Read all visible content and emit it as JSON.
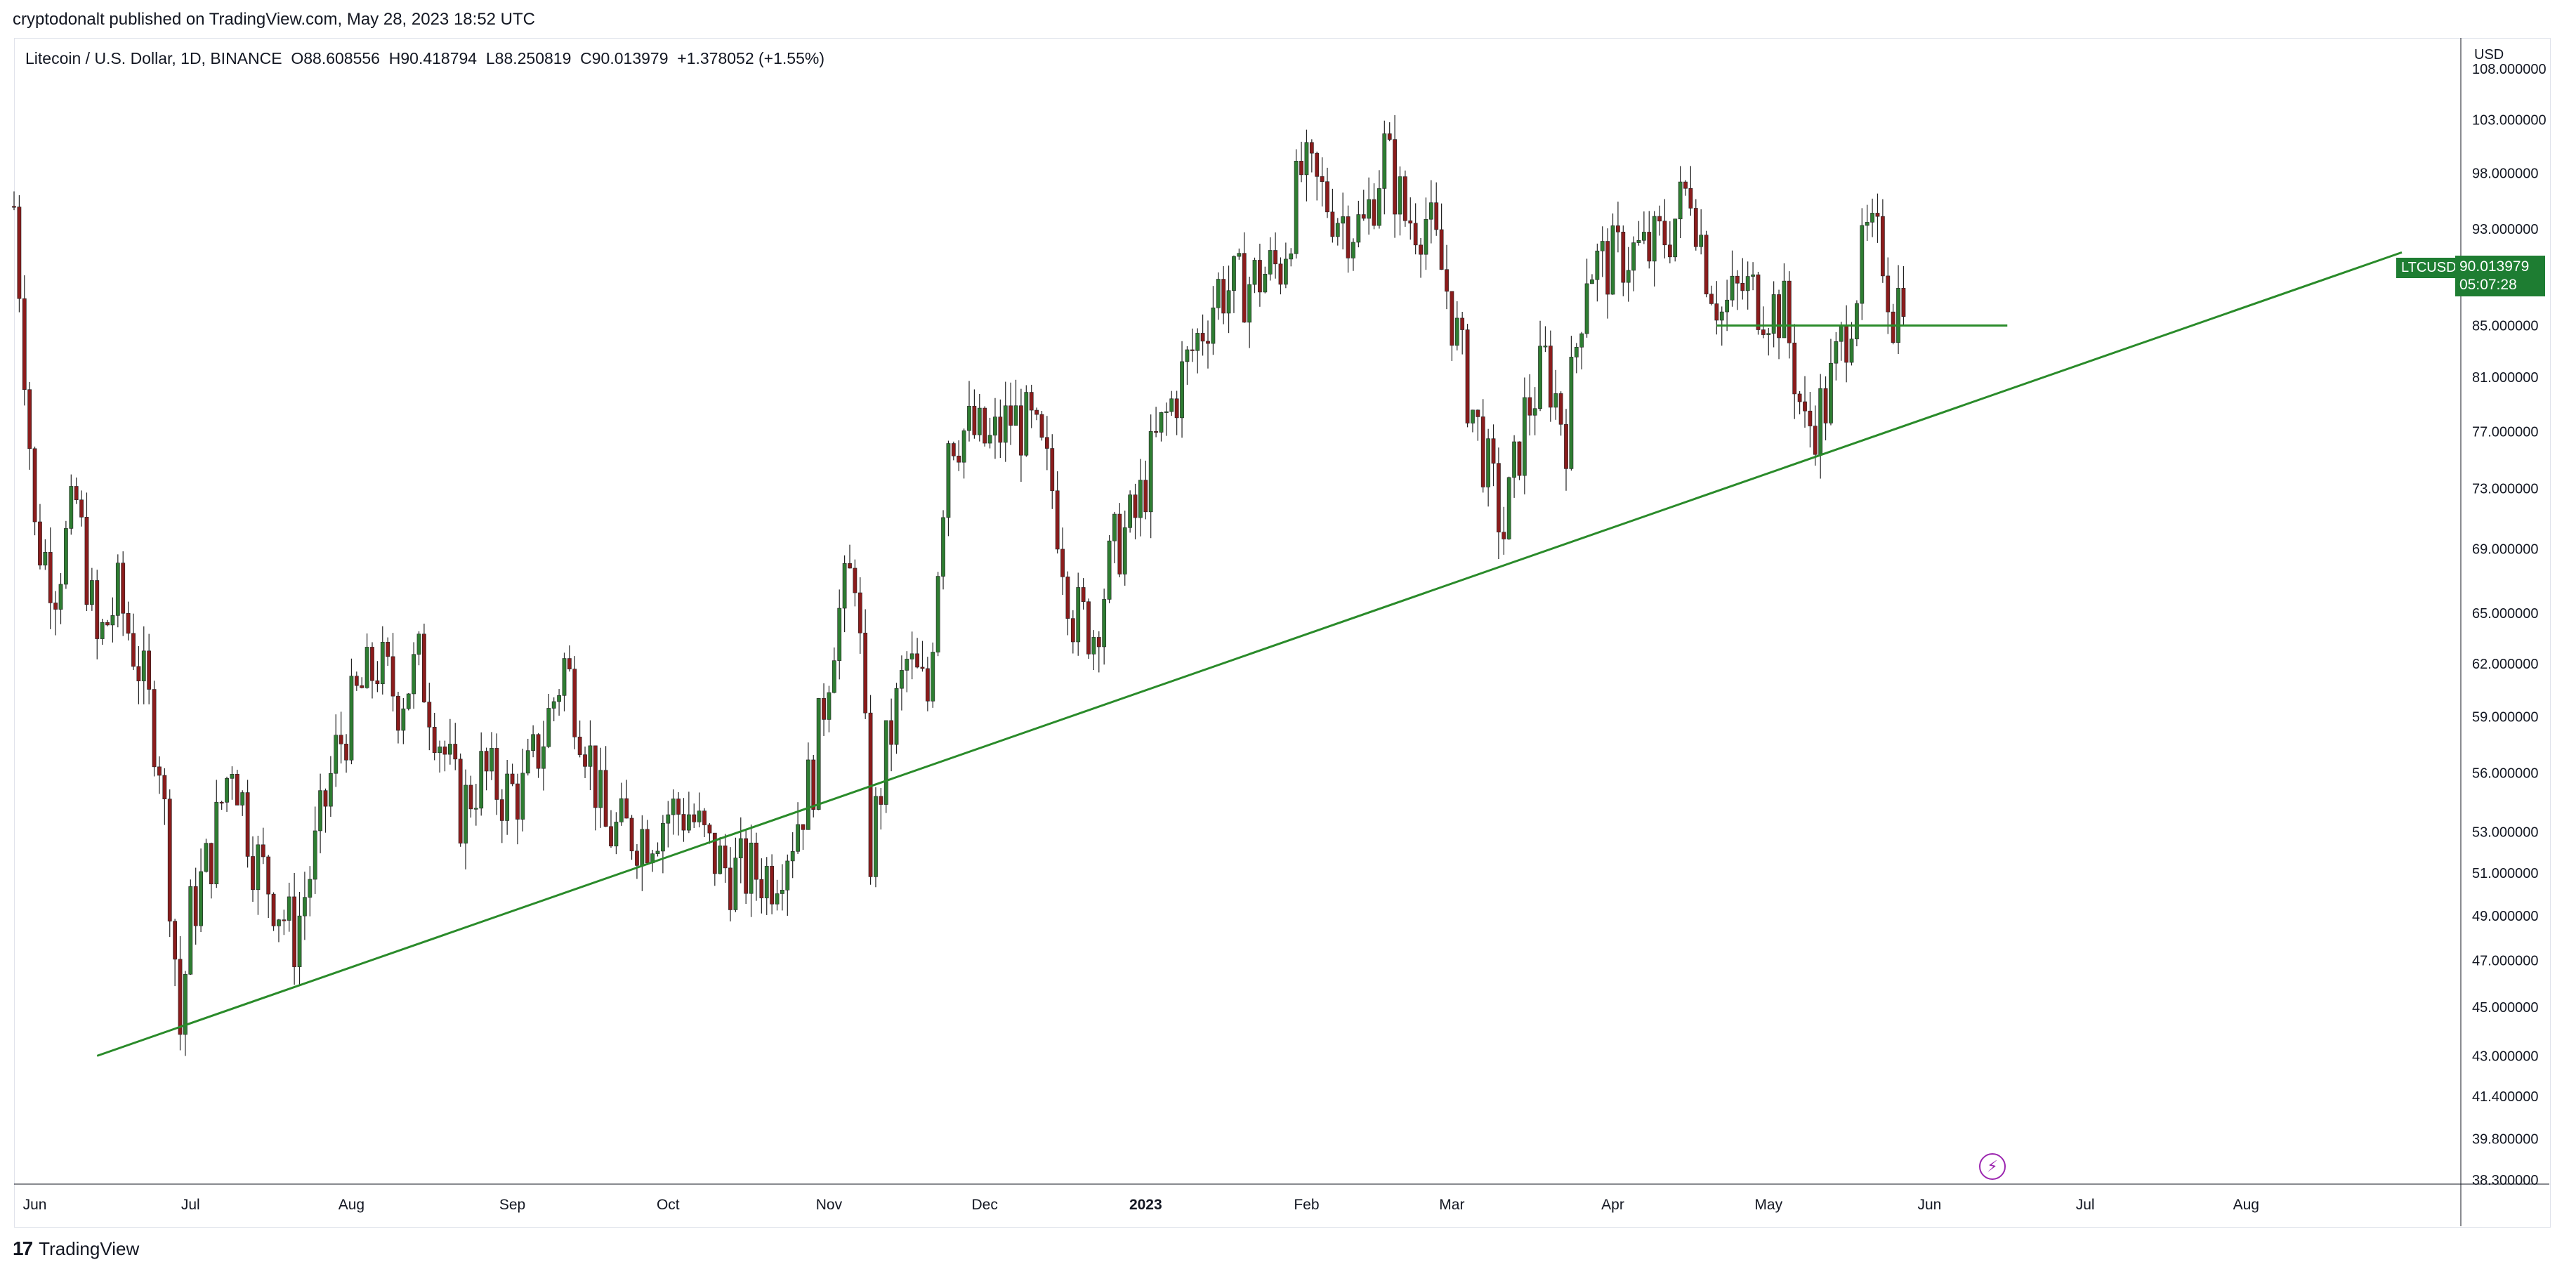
{
  "header": {
    "published_by": "cryptodonalt published on TradingView.com, May 28, 2023 18:52 UTC"
  },
  "legend": {
    "text": "Litecoin / U.S. Dollar, 1D, BINANCE  O88.608556  H90.418794  L88.250819  C90.013979  +1.378052 (+1.55%)"
  },
  "footer": {
    "brand": "TradingView",
    "logo_glyph": "17"
  },
  "price_axis": {
    "currency": "USD",
    "ticks": [
      "108.000000",
      "103.000000",
      "98.000000",
      "93.000000",
      "85.000000",
      "81.000000",
      "77.000000",
      "73.000000",
      "69.000000",
      "65.000000",
      "62.000000",
      "59.000000",
      "56.000000",
      "53.000000",
      "51.000000",
      "49.000000",
      "47.000000",
      "45.000000",
      "43.000000",
      "41.400000",
      "39.800000",
      "38.300000"
    ]
  },
  "current_price": {
    "symbol": "LTCUSD",
    "price": "90.013979",
    "countdown": "05:07:28",
    "color": "#1e7d32"
  },
  "time_axis": {
    "labels": [
      "Jun",
      "Jul",
      "Aug",
      "Sep",
      "Oct",
      "Nov",
      "Dec",
      "2023",
      "Feb",
      "Mar",
      "Apr",
      "May",
      "Jun",
      "Jul",
      "Aug"
    ]
  },
  "colors": {
    "up": "#2e7d32",
    "down": "#8b1c1c",
    "trendline": "#2a8b2a",
    "bolt": "#9c27b0"
  },
  "chart_data": {
    "type": "candlestick",
    "scale": "log",
    "ylim": [
      38.3,
      108
    ],
    "x_start": "2022-05-28",
    "x_end": "2023-08-31",
    "series": [
      {
        "x": "2022-05-28",
        "close": 95
      },
      {
        "x": "2022-06-01",
        "close": 70
      },
      {
        "x": "2022-06-05",
        "close": 67
      },
      {
        "x": "2022-06-09",
        "close": 72
      },
      {
        "x": "2022-06-13",
        "close": 63
      },
      {
        "x": "2022-06-17",
        "close": 66
      },
      {
        "x": "2022-06-21",
        "close": 62
      },
      {
        "x": "2022-06-25",
        "close": 57
      },
      {
        "x": "2022-06-29",
        "close": 44
      },
      {
        "x": "2022-07-01",
        "close": 49
      },
      {
        "x": "2022-07-05",
        "close": 52
      },
      {
        "x": "2022-07-09",
        "close": 57
      },
      {
        "x": "2022-07-13",
        "close": 52
      },
      {
        "x": "2022-07-17",
        "close": 50
      },
      {
        "x": "2022-07-21",
        "close": 48
      },
      {
        "x": "2022-07-25",
        "close": 52
      },
      {
        "x": "2022-07-29",
        "close": 57
      },
      {
        "x": "2022-08-02",
        "close": 60
      },
      {
        "x": "2022-08-06",
        "close": 62
      },
      {
        "x": "2022-08-10",
        "close": 60
      },
      {
        "x": "2022-08-14",
        "close": 62
      },
      {
        "x": "2022-08-18",
        "close": 58
      },
      {
        "x": "2022-08-22",
        "close": 54
      },
      {
        "x": "2022-08-26",
        "close": 56
      },
      {
        "x": "2022-08-30",
        "close": 55
      },
      {
        "x": "2022-09-03",
        "close": 55
      },
      {
        "x": "2022-09-07",
        "close": 58
      },
      {
        "x": "2022-09-11",
        "close": 62
      },
      {
        "x": "2022-09-15",
        "close": 58
      },
      {
        "x": "2022-09-19",
        "close": 53
      },
      {
        "x": "2022-09-23",
        "close": 53
      },
      {
        "x": "2022-09-27",
        "close": 53
      },
      {
        "x": "2022-10-01",
        "close": 54
      },
      {
        "x": "2022-10-05",
        "close": 54
      },
      {
        "x": "2022-10-09",
        "close": 52
      },
      {
        "x": "2022-10-13",
        "close": 51
      },
      {
        "x": "2022-10-17",
        "close": 51
      },
      {
        "x": "2022-10-21",
        "close": 51
      },
      {
        "x": "2022-10-25",
        "close": 53
      },
      {
        "x": "2022-10-29",
        "close": 56
      },
      {
        "x": "2022-11-02",
        "close": 64
      },
      {
        "x": "2022-11-06",
        "close": 68
      },
      {
        "x": "2022-11-09",
        "close": 52
      },
      {
        "x": "2022-11-12",
        "close": 57
      },
      {
        "x": "2022-11-16",
        "close": 62
      },
      {
        "x": "2022-11-20",
        "close": 60
      },
      {
        "x": "2022-11-24",
        "close": 77
      },
      {
        "x": "2022-11-28",
        "close": 77
      },
      {
        "x": "2022-12-02",
        "close": 76
      },
      {
        "x": "2022-12-06",
        "close": 78
      },
      {
        "x": "2022-12-10",
        "close": 77
      },
      {
        "x": "2022-12-14",
        "close": 73
      },
      {
        "x": "2022-12-18",
        "close": 65
      },
      {
        "x": "2022-12-22",
        "close": 64
      },
      {
        "x": "2022-12-26",
        "close": 69
      },
      {
        "x": "2022-12-30",
        "close": 71
      },
      {
        "x": "2023-01-03",
        "close": 76
      },
      {
        "x": "2023-01-07",
        "close": 80
      },
      {
        "x": "2023-01-11",
        "close": 84
      },
      {
        "x": "2023-01-15",
        "close": 88
      },
      {
        "x": "2023-01-19",
        "close": 88
      },
      {
        "x": "2023-01-23",
        "close": 89
      },
      {
        "x": "2023-01-27",
        "close": 90
      },
      {
        "x": "2023-01-31",
        "close": 98
      },
      {
        "x": "2023-02-04",
        "close": 96
      },
      {
        "x": "2023-02-08",
        "close": 94
      },
      {
        "x": "2023-02-12",
        "close": 93
      },
      {
        "x": "2023-02-16",
        "close": 100
      },
      {
        "x": "2023-02-20",
        "close": 94
      },
      {
        "x": "2023-02-24",
        "close": 94
      },
      {
        "x": "2023-02-28",
        "close": 88
      },
      {
        "x": "2023-03-04",
        "close": 80
      },
      {
        "x": "2023-03-08",
        "close": 74
      },
      {
        "x": "2023-03-11",
        "close": 70
      },
      {
        "x": "2023-03-15",
        "close": 78
      },
      {
        "x": "2023-03-19",
        "close": 82
      },
      {
        "x": "2023-03-23",
        "close": 77
      },
      {
        "x": "2023-03-27",
        "close": 90
      },
      {
        "x": "2023-03-31",
        "close": 90
      },
      {
        "x": "2023-04-04",
        "close": 91
      },
      {
        "x": "2023-04-08",
        "close": 91
      },
      {
        "x": "2023-04-12",
        "close": 93
      },
      {
        "x": "2023-04-16",
        "close": 97
      },
      {
        "x": "2023-04-19",
        "close": 90
      },
      {
        "x": "2023-04-22",
        "close": 86
      },
      {
        "x": "2023-04-26",
        "close": 88
      },
      {
        "x": "2023-04-30",
        "close": 87
      },
      {
        "x": "2023-05-04",
        "close": 86
      },
      {
        "x": "2023-05-08",
        "close": 77
      },
      {
        "x": "2023-05-12",
        "close": 79
      },
      {
        "x": "2023-05-16",
        "close": 85
      },
      {
        "x": "2023-05-20",
        "close": 92
      },
      {
        "x": "2023-05-23",
        "close": 91
      },
      {
        "x": "2023-05-25",
        "close": 86
      },
      {
        "x": "2023-05-28",
        "close": 90.01
      }
    ],
    "trendline": {
      "start": {
        "x": "2022-06-13",
        "y": 43
      },
      "end": {
        "x": "2023-08-31",
        "y": 91
      }
    },
    "support_line": {
      "start": {
        "x": "2023-04-21",
        "y": 85
      },
      "end": {
        "x": "2023-06-16",
        "y": 85
      }
    }
  }
}
